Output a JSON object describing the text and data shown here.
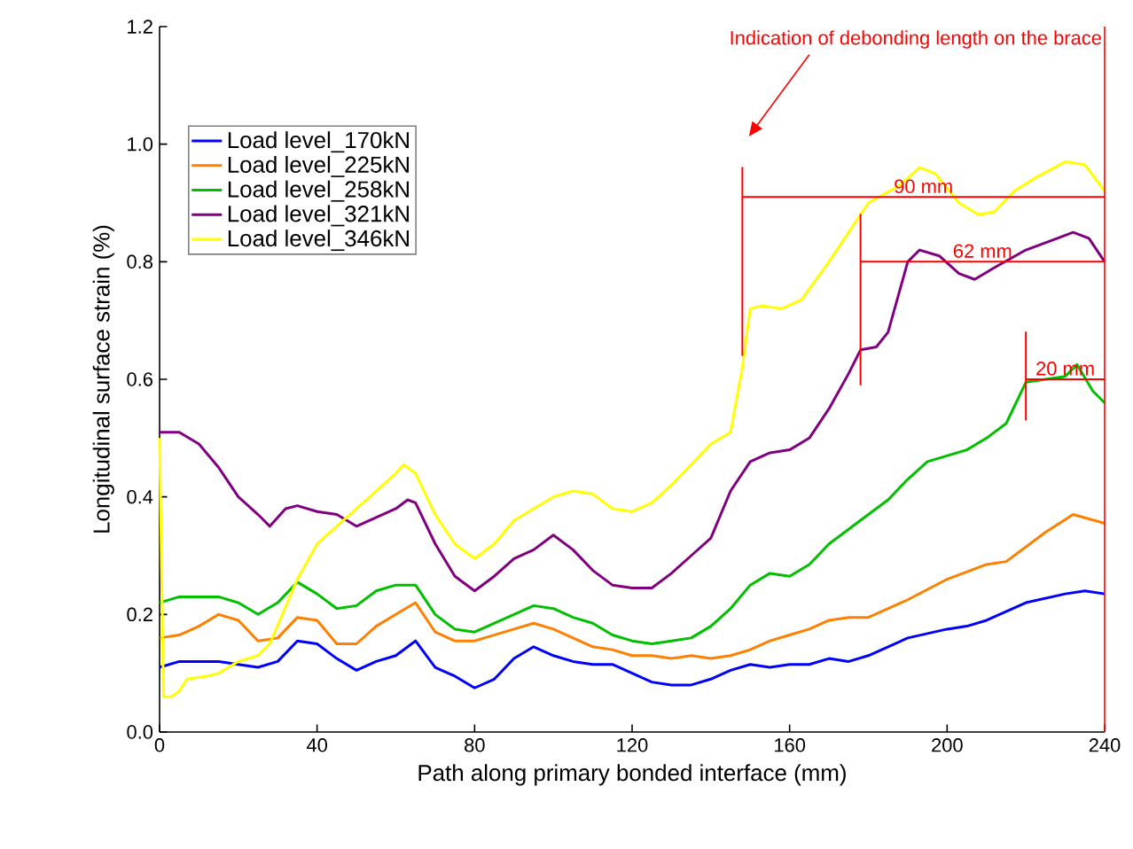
{
  "chart_data": {
    "type": "line",
    "xlabel": "Path along primary bonded interface (mm)",
    "ylabel": "Longitudinal surface strain (%)",
    "xlim": [
      0,
      240
    ],
    "ylim": [
      0,
      1.2
    ],
    "xticks": [
      0,
      40,
      80,
      120,
      160,
      200,
      240
    ],
    "yticks": [
      {
        "value": 0,
        "label": "0.0"
      },
      {
        "value": 0.2,
        "label": "0.2"
      },
      {
        "value": 0.4,
        "label": "0.4"
      },
      {
        "value": 0.6,
        "label": "0.6"
      },
      {
        "value": 0.8,
        "label": "0.8"
      },
      {
        "value": 1.0,
        "label": "1.0"
      },
      {
        "value": 1.2,
        "label": "1.2"
      }
    ],
    "grid": false,
    "legend": "top left",
    "marker": "none",
    "line_style": "solid",
    "series": [
      {
        "name": "Load level_170kN",
        "color": "#0000ff",
        "x": [
          0,
          5,
          10,
          15,
          20,
          25,
          30,
          35,
          40,
          45,
          50,
          55,
          60,
          65,
          70,
          75,
          80,
          85,
          90,
          95,
          100,
          105,
          110,
          115,
          120,
          125,
          130,
          135,
          140,
          145,
          150,
          155,
          160,
          165,
          170,
          175,
          180,
          190,
          200,
          205,
          210,
          220,
          230,
          235,
          240
        ],
        "values": [
          0.11,
          0.12,
          0.12,
          0.12,
          0.115,
          0.11,
          0.12,
          0.155,
          0.15,
          0.125,
          0.105,
          0.12,
          0.13,
          0.155,
          0.11,
          0.095,
          0.075,
          0.09,
          0.125,
          0.145,
          0.13,
          0.12,
          0.115,
          0.115,
          0.1,
          0.085,
          0.08,
          0.08,
          0.09,
          0.105,
          0.115,
          0.11,
          0.115,
          0.115,
          0.125,
          0.12,
          0.13,
          0.16,
          0.175,
          0.18,
          0.19,
          0.22,
          0.235,
          0.24,
          0.235
        ]
      },
      {
        "name": "Load level_225kN",
        "color": "#ff8000",
        "x": [
          0,
          5,
          10,
          15,
          20,
          25,
          30,
          35,
          40,
          45,
          50,
          55,
          60,
          65,
          70,
          75,
          80,
          85,
          90,
          95,
          100,
          105,
          110,
          115,
          120,
          125,
          130,
          135,
          140,
          145,
          150,
          155,
          160,
          165,
          170,
          175,
          180,
          190,
          200,
          210,
          215,
          225,
          232,
          240
        ],
        "values": [
          0.16,
          0.165,
          0.18,
          0.2,
          0.19,
          0.155,
          0.16,
          0.195,
          0.19,
          0.15,
          0.15,
          0.18,
          0.2,
          0.22,
          0.17,
          0.155,
          0.155,
          0.165,
          0.175,
          0.185,
          0.175,
          0.16,
          0.145,
          0.14,
          0.13,
          0.13,
          0.125,
          0.13,
          0.125,
          0.13,
          0.14,
          0.155,
          0.165,
          0.175,
          0.19,
          0.195,
          0.195,
          0.225,
          0.26,
          0.285,
          0.29,
          0.34,
          0.37,
          0.355
        ]
      },
      {
        "name": "Load level_258kN",
        "color": "#00c000",
        "x": [
          0,
          5,
          10,
          15,
          20,
          25,
          30,
          35,
          40,
          45,
          50,
          55,
          60,
          65,
          70,
          75,
          80,
          85,
          90,
          95,
          100,
          105,
          110,
          115,
          120,
          125,
          130,
          135,
          140,
          145,
          150,
          155,
          160,
          165,
          170,
          180,
          185,
          190,
          195,
          200,
          205,
          210,
          215,
          220,
          225,
          230,
          233,
          237,
          240
        ],
        "values": [
          0.22,
          0.23,
          0.23,
          0.23,
          0.22,
          0.2,
          0.22,
          0.255,
          0.235,
          0.21,
          0.215,
          0.24,
          0.25,
          0.25,
          0.2,
          0.175,
          0.17,
          0.185,
          0.2,
          0.215,
          0.21,
          0.195,
          0.185,
          0.165,
          0.155,
          0.15,
          0.155,
          0.16,
          0.18,
          0.21,
          0.25,
          0.27,
          0.265,
          0.285,
          0.32,
          0.37,
          0.395,
          0.43,
          0.46,
          0.47,
          0.48,
          0.5,
          0.525,
          0.595,
          0.6,
          0.605,
          0.625,
          0.58,
          0.56
        ]
      },
      {
        "name": "Load level_321kN",
        "color": "#800080",
        "x": [
          0,
          5,
          10,
          15,
          20,
          25,
          28,
          32,
          35,
          40,
          45,
          50,
          55,
          60,
          63,
          65,
          70,
          75,
          80,
          85,
          90,
          95,
          100,
          105,
          110,
          115,
          120,
          125,
          130,
          135,
          140,
          145,
          150,
          155,
          160,
          165,
          170,
          175,
          178,
          182,
          185,
          190,
          193,
          198,
          203,
          207,
          212,
          220,
          228,
          232,
          236,
          240
        ],
        "values": [
          0.51,
          0.51,
          0.49,
          0.45,
          0.4,
          0.37,
          0.35,
          0.38,
          0.385,
          0.375,
          0.37,
          0.35,
          0.365,
          0.38,
          0.395,
          0.39,
          0.32,
          0.265,
          0.24,
          0.265,
          0.295,
          0.31,
          0.335,
          0.31,
          0.275,
          0.25,
          0.245,
          0.245,
          0.27,
          0.3,
          0.33,
          0.41,
          0.46,
          0.475,
          0.48,
          0.5,
          0.55,
          0.61,
          0.65,
          0.655,
          0.68,
          0.8,
          0.82,
          0.81,
          0.78,
          0.77,
          0.79,
          0.82,
          0.84,
          0.85,
          0.84,
          0.8
        ]
      },
      {
        "name": "Load level_346kN",
        "color": "#ffff00",
        "x": [
          0,
          1,
          3,
          5,
          7,
          12,
          15,
          20,
          25,
          28,
          35,
          40,
          45,
          50,
          55,
          60,
          62,
          65,
          70,
          75,
          80,
          85,
          90,
          95,
          100,
          105,
          110,
          115,
          120,
          125,
          130,
          135,
          140,
          145,
          148,
          150,
          153,
          158,
          163,
          170,
          175,
          180,
          188,
          193,
          197,
          203,
          208,
          212,
          217,
          223,
          230,
          235,
          240
        ],
        "values": [
          0.5,
          0.06,
          0.06,
          0.07,
          0.09,
          0.095,
          0.1,
          0.12,
          0.13,
          0.15,
          0.26,
          0.32,
          0.35,
          0.38,
          0.41,
          0.44,
          0.455,
          0.44,
          0.37,
          0.32,
          0.295,
          0.32,
          0.36,
          0.38,
          0.4,
          0.41,
          0.405,
          0.38,
          0.375,
          0.39,
          0.42,
          0.455,
          0.49,
          0.51,
          0.62,
          0.72,
          0.725,
          0.72,
          0.735,
          0.8,
          0.85,
          0.9,
          0.93,
          0.96,
          0.95,
          0.9,
          0.88,
          0.885,
          0.92,
          0.945,
          0.97,
          0.965,
          0.92
        ]
      },
      {
        "type": "line",
        "color": "#ff0000",
        "x": [
          148,
          148,
          148,
          240
        ],
        "values": [
          0.64,
          0.96,
          0.91,
          0.91
        ]
      },
      {
        "type": "line",
        "color": "#ff0000",
        "x": [
          178,
          178,
          178,
          240
        ],
        "values": [
          0.59,
          0.88,
          0.8,
          0.8
        ]
      },
      {
        "type": "line",
        "color": "#ff0000",
        "x": [
          220,
          220,
          220,
          240
        ],
        "values": [
          0.53,
          0.68,
          0.6,
          0.6
        ]
      }
    ],
    "ref_lines": [
      {
        "axis": "x",
        "value": 240,
        "color": "#ff0000"
      }
    ],
    "annotations": [
      "Indication of debonding length on the brace",
      {
        "text": "90 mm",
        "x": 194,
        "y": 0.91
      },
      {
        "text": "62 mm",
        "x": 209,
        "y": 0.8
      },
      {
        "text": "20 mm",
        "x": 230,
        "y": 0.6
      }
    ]
  }
}
